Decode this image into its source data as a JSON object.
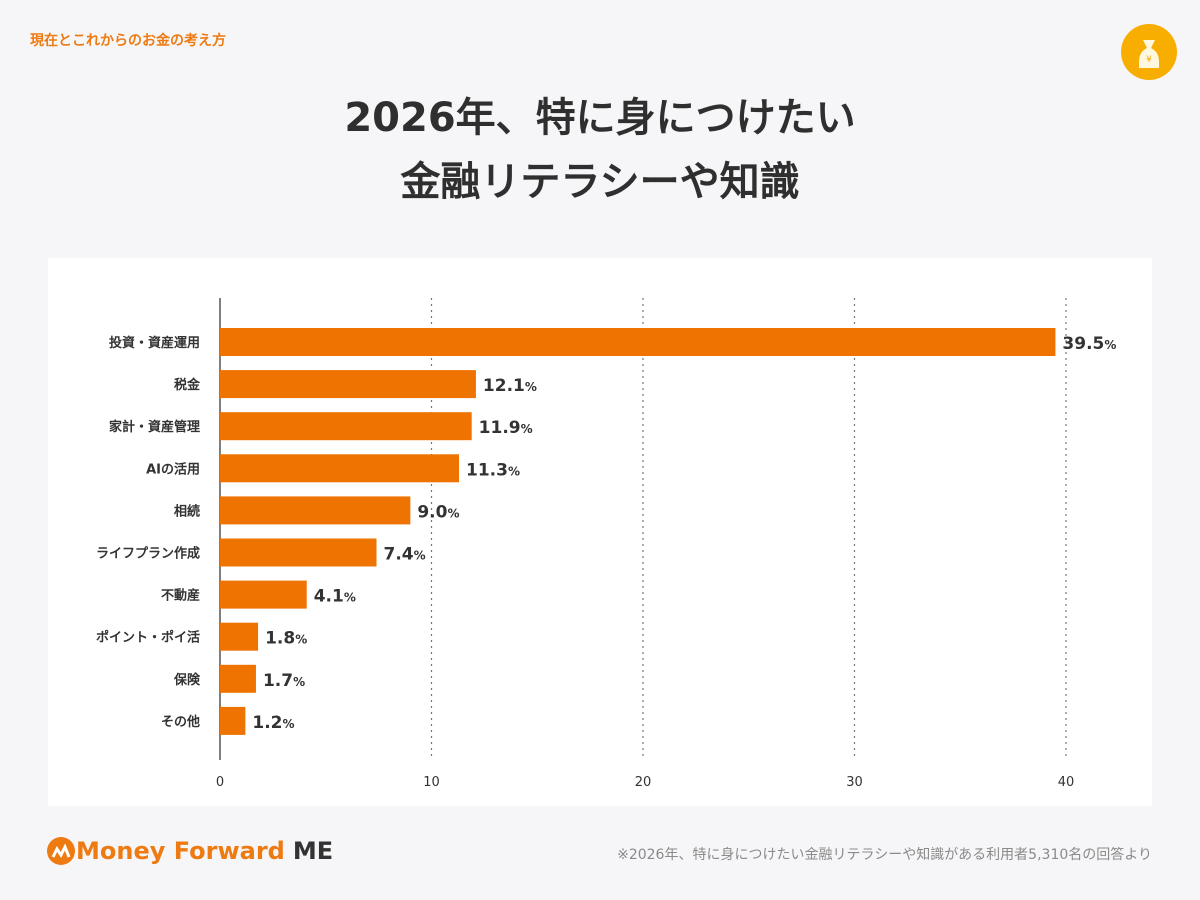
{
  "header": {
    "series_label": "現在とこれからのお金の考え方",
    "title_line1": "2026年、特に身につけたい",
    "title_line2": "金融リテラシーや知識"
  },
  "footer": {
    "logo_main": "Money Forward",
    "logo_suffix": "ME",
    "note": "※2026年、特に身につけたい金融リテラシーや知識がある利用者5,310名の回答より"
  },
  "colors": {
    "bar": "#ee7300",
    "accent": "#ee7a12",
    "badge": "#f8ae00"
  },
  "chart_data": {
    "type": "bar",
    "orientation": "horizontal",
    "title": "2026年、特に身につけたい金融リテラシーや知識",
    "categories": [
      "投資・資産運用",
      "税金",
      "家計・資産管理",
      "AIの活用",
      "相続",
      "ライフプラン作成",
      "不動産",
      "ポイント・ポイ活",
      "保険",
      "その他"
    ],
    "values": [
      39.5,
      12.1,
      11.9,
      11.3,
      9.0,
      7.4,
      4.1,
      1.8,
      1.7,
      1.2
    ],
    "value_labels": [
      "39.5",
      "12.1",
      "11.9",
      "11.3",
      "9.0",
      "7.4",
      "4.1",
      "1.8",
      "1.7",
      "1.2"
    ],
    "unit": "%",
    "xlim": [
      0,
      40
    ],
    "xticks": [
      "0",
      "10",
      "20",
      "30",
      "40"
    ],
    "grid": "vertical dotted"
  }
}
